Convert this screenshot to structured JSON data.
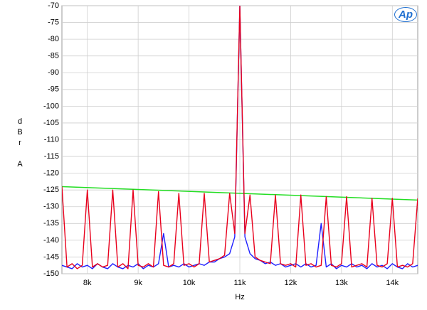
{
  "chart_data": {
    "type": "line",
    "y_label": "dBr A",
    "x_label": "Hz",
    "logo": "Ap",
    "x": [
      7500,
      7600,
      7700,
      7800,
      7900,
      8000,
      8100,
      8200,
      8300,
      8400,
      8500,
      8600,
      8700,
      8800,
      8900,
      9000,
      9100,
      9200,
      9300,
      9400,
      9500,
      9600,
      9700,
      9800,
      9900,
      10000,
      10100,
      10200,
      10300,
      10400,
      10500,
      10600,
      10700,
      10800,
      10900,
      11000,
      11100,
      11200,
      11300,
      11400,
      11500,
      11600,
      11700,
      11800,
      11900,
      12000,
      12100,
      12200,
      12300,
      12400,
      12500,
      12600,
      12700,
      12800,
      12900,
      13000,
      13100,
      13200,
      13300,
      13400,
      13500,
      13600,
      13700,
      13800,
      13900,
      14000,
      14100,
      14200,
      14300,
      14400,
      14500
    ],
    "series": [
      {
        "color": "#1f1fff",
        "values": [
          -147.5,
          -148,
          -148.5,
          -147,
          -148,
          -147.5,
          -148.5,
          -147,
          -148,
          -148.5,
          -147,
          -148,
          -148.5,
          -147.5,
          -148,
          -147,
          -148.5,
          -147.5,
          -148,
          -147,
          -138,
          -148,
          -147.5,
          -148,
          -147,
          -148,
          -147.5,
          -147,
          -147.5,
          -146.5,
          -146.5,
          -145.5,
          -145,
          -144,
          -139,
          -70,
          -139,
          -144,
          -145.5,
          -146,
          -147,
          -146.5,
          -147.5,
          -147,
          -148,
          -147.5,
          -147,
          -148,
          -147,
          -148,
          -147.5,
          -135,
          -148,
          -147,
          -148.5,
          -147.5,
          -148,
          -147,
          -148,
          -147.5,
          -148.5,
          -147,
          -148,
          -147.5,
          -148.5,
          -147,
          -148,
          -148.5,
          -147,
          -148,
          -147.5
        ]
      },
      {
        "color": "#e8001c",
        "values": [
          -124,
          -148,
          -147,
          -148.5,
          -147.5,
          -125,
          -148,
          -147,
          -148,
          -147.5,
          -125,
          -148,
          -147,
          -148.5,
          -125,
          -147.5,
          -148,
          -147,
          -148,
          -125.5,
          -147.5,
          -148,
          -147,
          -126,
          -147.5,
          -147,
          -148,
          -147,
          -126,
          -146.5,
          -146,
          -145.5,
          -144.5,
          -126,
          -138,
          -70,
          -138,
          -126.5,
          -145,
          -146,
          -146.5,
          -147,
          -126.5,
          -147,
          -147.5,
          -147,
          -148,
          -126.5,
          -147.5,
          -147,
          -148,
          -147.5,
          -127,
          -147.5,
          -148,
          -147,
          -127,
          -148,
          -147.5,
          -147,
          -148,
          -127.5,
          -147.5,
          -148,
          -147,
          -127.5,
          -148,
          -147.5,
          -148,
          -147,
          -127.5
        ]
      }
    ],
    "limit_line": {
      "color": "#22dd22",
      "x": [
        7500,
        14500
      ],
      "values": [
        -124,
        -128
      ]
    },
    "xlim": [
      7500,
      14500
    ],
    "ylim": [
      -150,
      -70
    ],
    "xticks": [
      {
        "value": 8000,
        "label": "8k"
      },
      {
        "value": 9000,
        "label": "9k"
      },
      {
        "value": 10000,
        "label": "10k"
      },
      {
        "value": 11000,
        "label": "11k"
      },
      {
        "value": 12000,
        "label": "12k"
      },
      {
        "value": 13000,
        "label": "13k"
      },
      {
        "value": 14000,
        "label": "14k"
      }
    ],
    "yticks": [
      -70,
      -75,
      -80,
      -85,
      -90,
      -95,
      -100,
      -105,
      -110,
      -115,
      -120,
      -125,
      -130,
      -135,
      -140,
      -145,
      -150
    ],
    "grid": true
  }
}
